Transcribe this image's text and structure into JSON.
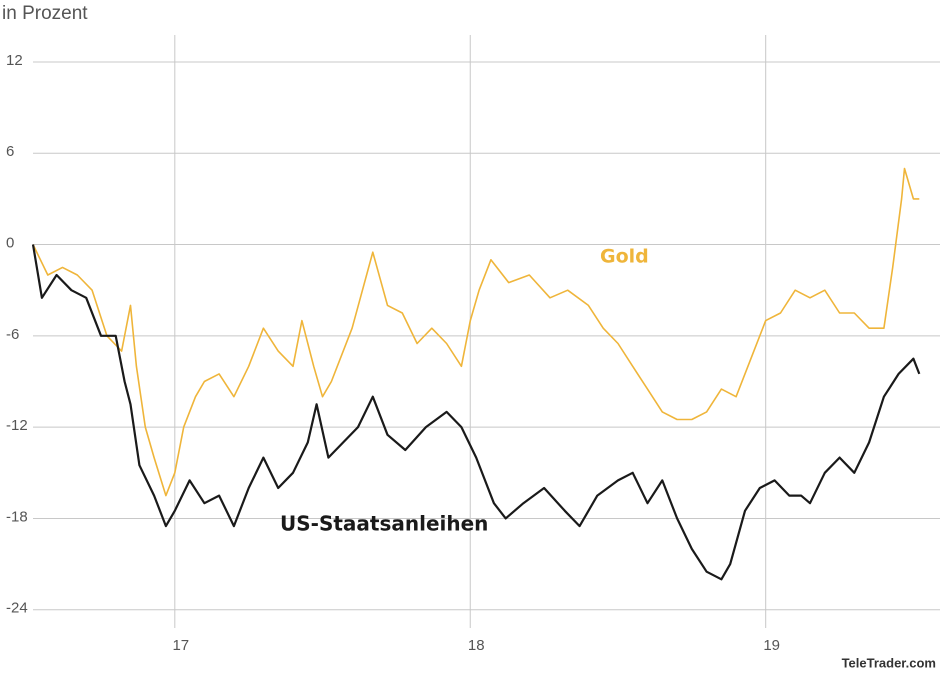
{
  "chart_data": {
    "type": "line",
    "y_label": "in Prozent",
    "source": "TeleTrader.com",
    "xlim": [
      16.52,
      19.59
    ],
    "xticks": [
      17,
      18,
      19
    ],
    "ylim": [
      -25.2,
      14.1
    ],
    "yticks": [
      12,
      6,
      0,
      -6,
      -12,
      -18,
      -24
    ],
    "grid": true,
    "series": [
      {
        "name": "Gold",
        "color": "#efb53a",
        "x": [
          16.52,
          16.57,
          16.62,
          16.67,
          16.72,
          16.77,
          16.82,
          16.85,
          16.87,
          16.9,
          16.93,
          16.97,
          17.0,
          17.03,
          17.07,
          17.1,
          17.15,
          17.2,
          17.25,
          17.3,
          17.35,
          17.4,
          17.43,
          17.47,
          17.5,
          17.53,
          17.6,
          17.67,
          17.72,
          17.77,
          17.82,
          17.87,
          17.92,
          17.97,
          18.0,
          18.03,
          18.07,
          18.13,
          18.2,
          18.27,
          18.33,
          18.4,
          18.45,
          18.5,
          18.55,
          18.6,
          18.65,
          18.7,
          18.75,
          18.8,
          18.85,
          18.9,
          18.95,
          19.0,
          19.05,
          19.1,
          19.15,
          19.2,
          19.25,
          19.3,
          19.35,
          19.4,
          19.43,
          19.46,
          19.47,
          19.5,
          19.52
        ],
        "values": [
          0,
          -2,
          -1.5,
          -2,
          -3,
          -6,
          -7,
          -4,
          -8,
          -12,
          -14,
          -16.5,
          -15,
          -12,
          -10,
          -9,
          -8.5,
          -10,
          -8,
          -5.5,
          -7,
          -8,
          -5,
          -8,
          -10,
          -9,
          -5.5,
          -0.5,
          -4,
          -4.5,
          -6.5,
          -5.5,
          -6.5,
          -8,
          -5,
          -3,
          -1,
          -2.5,
          -2,
          -3.5,
          -3,
          -4,
          -5.5,
          -6.5,
          -8,
          -9.5,
          -11,
          -11.5,
          -11.5,
          -11,
          -9.5,
          -10,
          -7.5,
          -5,
          -4.5,
          -3,
          -3.5,
          -3,
          -4.5,
          -4.5,
          -5.5,
          -5.5,
          -1.5,
          3,
          5,
          3,
          3
        ]
      },
      {
        "name": "US-Staatsanleihen",
        "color": "#1a1a1a",
        "x": [
          16.52,
          16.55,
          16.6,
          16.65,
          16.7,
          16.75,
          16.8,
          16.83,
          16.85,
          16.88,
          16.93,
          16.97,
          17.0,
          17.05,
          17.1,
          17.15,
          17.2,
          17.25,
          17.3,
          17.35,
          17.4,
          17.45,
          17.48,
          17.52,
          17.57,
          17.62,
          17.67,
          17.72,
          17.78,
          17.85,
          17.92,
          17.97,
          18.02,
          18.08,
          18.12,
          18.18,
          18.25,
          18.32,
          18.37,
          18.43,
          18.5,
          18.55,
          18.6,
          18.65,
          18.7,
          18.75,
          18.8,
          18.85,
          18.88,
          18.93,
          18.98,
          19.03,
          19.08,
          19.12,
          19.15,
          19.2,
          19.25,
          19.3,
          19.35,
          19.4,
          19.45,
          19.5,
          19.52
        ],
        "values": [
          0,
          -3.5,
          -2,
          -3,
          -3.5,
          -6,
          -6,
          -9,
          -10.5,
          -14.5,
          -16.5,
          -18.5,
          -17.5,
          -15.5,
          -17,
          -16.5,
          -18.5,
          -16,
          -14,
          -16,
          -15,
          -13,
          -10.5,
          -14,
          -13,
          -12,
          -10,
          -12.5,
          -13.5,
          -12,
          -11,
          -12,
          -14,
          -17,
          -18,
          -17,
          -16,
          -17.5,
          -18.5,
          -16.5,
          -15.5,
          -15,
          -17,
          -15.5,
          -18,
          -20,
          -21.5,
          -22,
          -21,
          -17.5,
          -16,
          -15.5,
          -16.5,
          -16.5,
          -17,
          -15,
          -14,
          -15,
          -13,
          -10,
          -8.5,
          -7.5,
          -8.5
        ]
      }
    ]
  }
}
